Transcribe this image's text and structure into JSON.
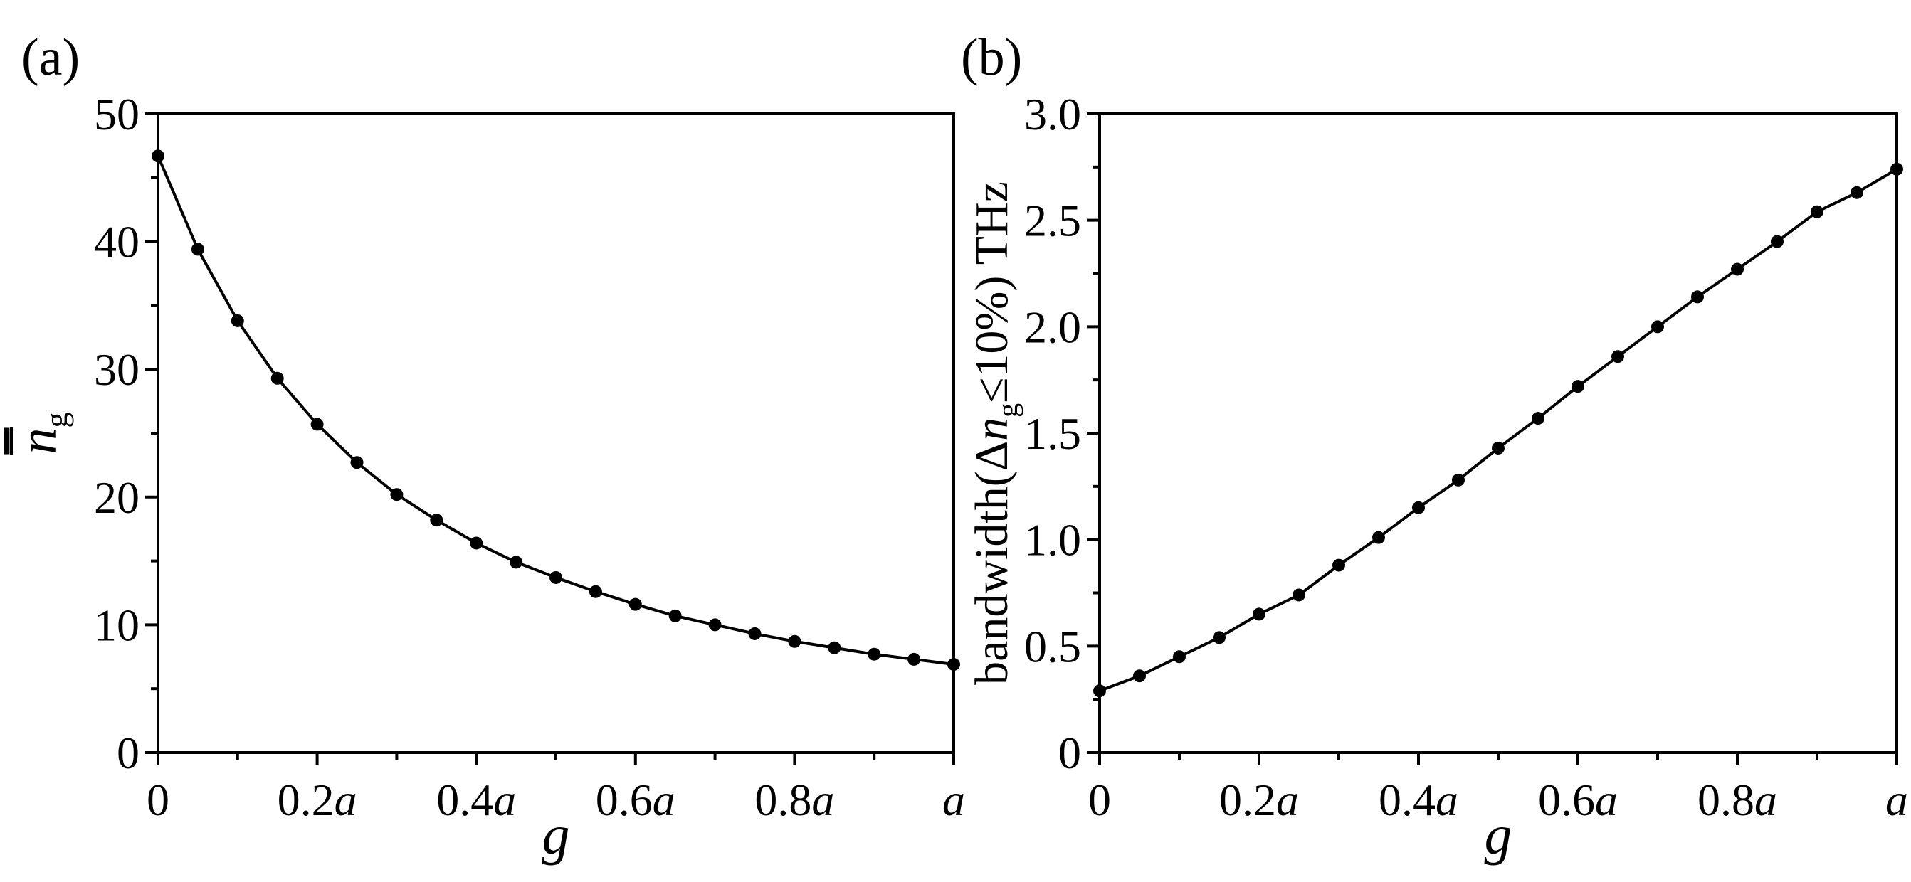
{
  "chart_data": [
    {
      "type": "line",
      "panel_label": "(a)",
      "xlabel": "g",
      "ylabel_main": "n",
      "ylabel_sub": "g",
      "xlim": [
        0,
        1
      ],
      "ylim": [
        0,
        50
      ],
      "xticks": [
        0,
        0.2,
        0.4,
        0.6,
        0.8,
        1
      ],
      "xtick_labels": [
        {
          "num": "0",
          "unit": ""
        },
        {
          "num": "0.2",
          "unit": "a"
        },
        {
          "num": "0.4",
          "unit": "a"
        },
        {
          "num": "0.6",
          "unit": "a"
        },
        {
          "num": "0.8",
          "unit": "a"
        },
        {
          "num": "",
          "unit": "a"
        }
      ],
      "yticks": [
        0,
        10,
        20,
        30,
        40,
        50
      ],
      "ytick_labels": [
        "0",
        "10",
        "20",
        "30",
        "40",
        "50"
      ],
      "x": [
        0,
        0.05,
        0.1,
        0.15,
        0.2,
        0.25,
        0.3,
        0.35,
        0.4,
        0.45,
        0.5,
        0.55,
        0.6,
        0.65,
        0.7,
        0.75,
        0.8,
        0.85,
        0.9,
        0.95,
        1.0
      ],
      "y": [
        46.7,
        39.4,
        33.8,
        29.3,
        25.7,
        22.7,
        20.2,
        18.2,
        16.4,
        14.9,
        13.7,
        12.6,
        11.6,
        10.7,
        10.0,
        9.3,
        8.7,
        8.2,
        7.7,
        7.3,
        6.9
      ]
    },
    {
      "type": "line",
      "panel_label": "(b)",
      "xlabel": "g",
      "ylabel_parts": [
        "bandwidth(Δ",
        "n",
        "g",
        "≤10%) THz"
      ],
      "xlim": [
        0,
        1
      ],
      "ylim": [
        0,
        3.0
      ],
      "xticks": [
        0,
        0.2,
        0.4,
        0.6,
        0.8,
        1
      ],
      "xtick_labels": [
        {
          "num": "0",
          "unit": ""
        },
        {
          "num": "0.2",
          "unit": "a"
        },
        {
          "num": "0.4",
          "unit": "a"
        },
        {
          "num": "0.6",
          "unit": "a"
        },
        {
          "num": "0.8",
          "unit": "a"
        },
        {
          "num": "",
          "unit": "a"
        }
      ],
      "yticks": [
        0,
        0.5,
        1.0,
        1.5,
        2.0,
        2.5,
        3.0
      ],
      "ytick_labels": [
        "0",
        "0.5",
        "1.0",
        "1.5",
        "2.0",
        "2.5",
        "3.0"
      ],
      "x": [
        0,
        0.05,
        0.1,
        0.15,
        0.2,
        0.25,
        0.3,
        0.35,
        0.4,
        0.45,
        0.5,
        0.55,
        0.6,
        0.65,
        0.7,
        0.75,
        0.8,
        0.85,
        0.9,
        0.95,
        1.0
      ],
      "y": [
        0.29,
        0.36,
        0.45,
        0.54,
        0.65,
        0.74,
        0.88,
        1.01,
        1.15,
        1.28,
        1.43,
        1.57,
        1.72,
        1.86,
        2.0,
        2.14,
        2.27,
        2.4,
        2.54,
        2.63,
        2.74
      ]
    }
  ]
}
